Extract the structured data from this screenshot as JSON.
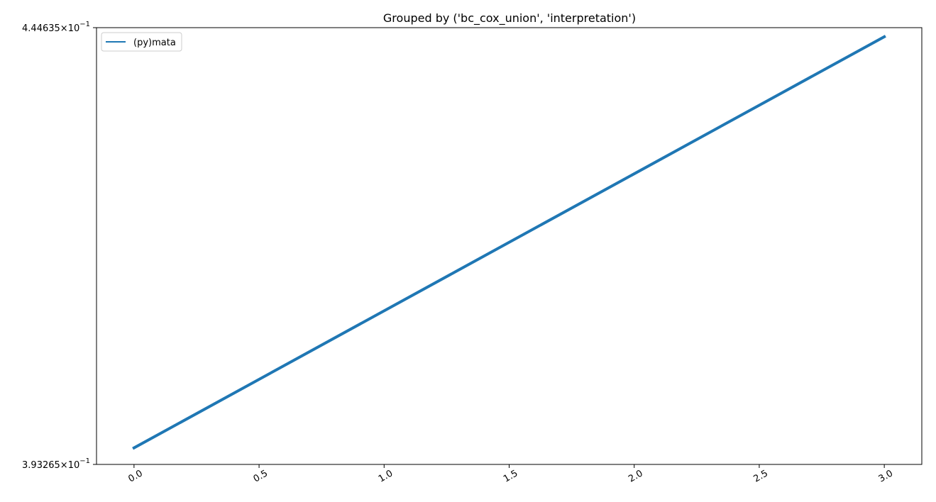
{
  "chart_data": {
    "type": "line",
    "title": "Grouped by ('bc_cox_union', 'interpretation')",
    "xlabel": "",
    "ylabel": "",
    "y_scale": "log",
    "xlim": [
      -0.15,
      3.15
    ],
    "ylim": [
      0.393265,
      0.444635
    ],
    "x_ticks": [
      0.0,
      0.5,
      1.0,
      1.5,
      2.0,
      2.5,
      3.0
    ],
    "x_tick_labels": [
      "0.0",
      "0.5",
      "1.0",
      "1.5",
      "2.0",
      "2.5",
      "3.0"
    ],
    "y_ticks": [
      {
        "value": 0.444635,
        "mantissa": "4.44635",
        "base": "10",
        "exponent": "−1"
      },
      {
        "value": 0.393265,
        "mantissa": "3.93265",
        "base": "10",
        "exponent": "−1"
      }
    ],
    "grid": false,
    "legend_position": "top-left",
    "series": [
      {
        "name": "(py)mata",
        "color": "#1f77b4",
        "x": [
          0,
          3
        ],
        "y": [
          0.3951,
          0.4435
        ]
      }
    ]
  }
}
